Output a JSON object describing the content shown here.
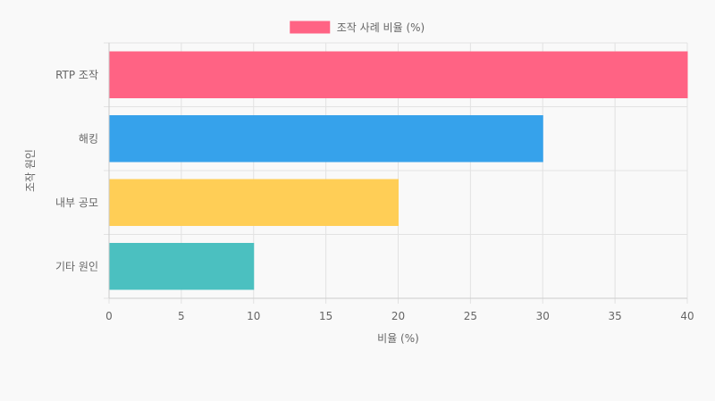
{
  "chart_data": {
    "type": "bar",
    "orientation": "horizontal",
    "categories": [
      "RTP 조작",
      "해킹",
      "내부 공모",
      "기타 원인"
    ],
    "series": [
      {
        "name": "조작 사례 비율 (%)",
        "values": [
          40,
          30,
          20,
          10
        ],
        "colors": [
          "#ff6384",
          "#36a2eb",
          "#ffce56",
          "#4bc0c0"
        ]
      }
    ],
    "xlabel": "비율 (%)",
    "ylabel": "조작 원인",
    "xlim": [
      0,
      40
    ],
    "xticks": [
      0,
      5,
      10,
      15,
      20,
      25,
      30,
      35,
      40
    ],
    "grid": true,
    "legend_position": "top"
  }
}
